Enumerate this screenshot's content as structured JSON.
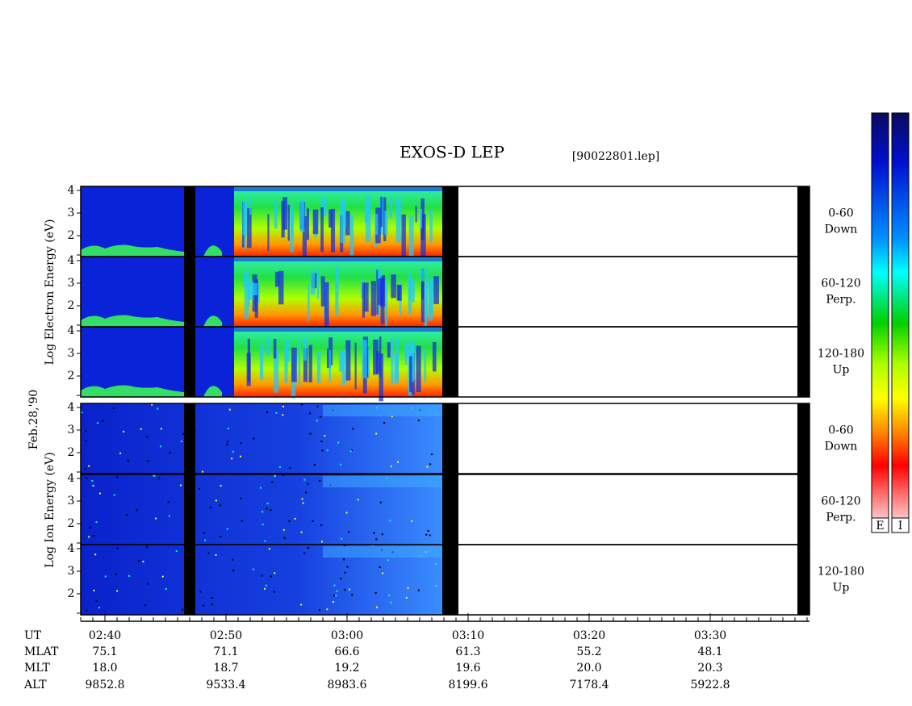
{
  "title": "EXOS-D LEP",
  "file": "[90022801.lep]",
  "date": "Feb.28,'90",
  "groups": [
    {
      "label": "Log Electron Energy (eV)",
      "panels": [
        {
          "pitch": "0-60",
          "direction": "Down",
          "ticks": [
            "4",
            "3",
            "2"
          ]
        },
        {
          "pitch": "60-120",
          "direction": "Perp.",
          "ticks": [
            "4",
            "3",
            "2"
          ]
        },
        {
          "pitch": "120-180",
          "direction": "Up",
          "ticks": [
            "4",
            "3",
            "2"
          ]
        }
      ]
    },
    {
      "label": "Log Ion Energy (eV)",
      "panels": [
        {
          "pitch": "0-60",
          "direction": "Down",
          "ticks": [
            "4",
            "3",
            "2"
          ]
        },
        {
          "pitch": "60-120",
          "direction": "Perp.",
          "ticks": [
            "4",
            "3",
            "2"
          ]
        },
        {
          "pitch": "120-180",
          "direction": "Up",
          "ticks": [
            "4",
            "3",
            "2"
          ]
        }
      ]
    }
  ],
  "color_bars": [
    "E",
    "I"
  ],
  "orbit": {
    "row_labels": [
      "UT",
      "MLAT",
      "MLT",
      "ALT"
    ],
    "columns": [
      [
        "02:40",
        "75.1",
        "18.0",
        "9852.8"
      ],
      [
        "02:50",
        "71.1",
        "18.7",
        "9533.4"
      ],
      [
        "03:00",
        "66.6",
        "19.2",
        "8983.6"
      ],
      [
        "03:10",
        "61.3",
        "19.6",
        "8199.6"
      ],
      [
        "03:20",
        "55.2",
        "20.0",
        "7178.4"
      ],
      [
        "03:30",
        "48.1",
        "20.3",
        "5922.8"
      ]
    ]
  }
}
